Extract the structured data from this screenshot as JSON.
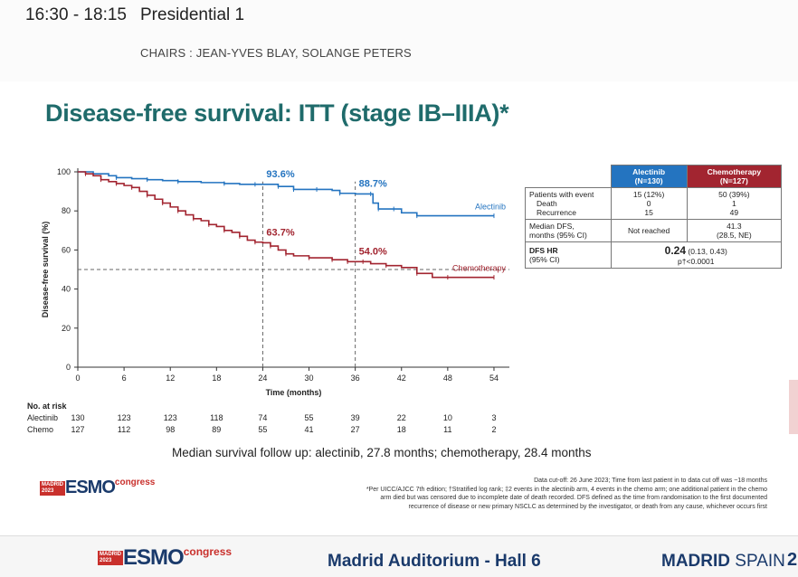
{
  "header": {
    "time": "16:30 - 18:15",
    "session": "Presidential 1",
    "chairs": "CHAIRS : JEAN-YVES BLAY, SOLANGE PETERS"
  },
  "slide": {
    "title": "Disease-free survival: ITT (stage IB–IIIA)*",
    "follow_up": "Median survival follow up: alectinib, 27.8 months; chemotherapy, 28.4 months",
    "footnotes": [
      "Data cut-off: 26 June 2023; Time from last patient in to data cut off was ~18 months",
      "*Per UICC/AJCC 7th edition; †Stratified log rank; ‡2 events in the alectinib arm, 4 events in the chemo arm; one additional patient in the chemo",
      "arm died but was censored due to incomplete date of death recorded. DFS defined as the time from randomisation to the first documented",
      "recurrence of disease or new primary NSCLC as determined by the investigator, or death from any cause, whichever occurs first"
    ]
  },
  "table": {
    "col_alectinib": "Alectinib",
    "col_alectinib_n": "(N=130)",
    "col_chemo": "Chemotherapy",
    "col_chemo_n": "(N=127)",
    "row_events_label": "Patients with event",
    "row_events_alec": "15 (12%)",
    "row_events_chemo": "50 (39%)",
    "row_death_label": "Death",
    "row_death_alec": "0",
    "row_death_chemo": "1",
    "row_recur_label": "Recurrence",
    "row_recur_alec": "15",
    "row_recur_chemo": "49",
    "row_median_label1": "Median DFS,",
    "row_median_label2": "months (95% CI)",
    "row_median_alec": "Not reached",
    "row_median_chemo1": "41.3",
    "row_median_chemo2": "(28.5, NE)",
    "row_hr_label1": "DFS HR",
    "row_hr_label2": "(95% CI)",
    "row_hr_value": "0.24",
    "row_hr_ci": "(0.13, 0.43)",
    "row_hr_p": "p†<0.0001"
  },
  "risk_table": {
    "title": "No. at risk",
    "rows": [
      {
        "label": "Alectinib",
        "values": [
          "130",
          "123",
          "123",
          "118",
          "74",
          "55",
          "39",
          "22",
          "10",
          "3"
        ]
      },
      {
        "label": "Chemo",
        "values": [
          "127",
          "112",
          "98",
          "89",
          "55",
          "41",
          "27",
          "18",
          "11",
          "2"
        ]
      }
    ]
  },
  "footer": {
    "room": "Madrid Auditorium - Hall 6",
    "city_bold": "MADRID",
    "city_country": "SPAIN",
    "corner": "2"
  },
  "logo": {
    "line1": "MADRID",
    "line2": "2023",
    "brand": "ESMO",
    "suffix": "congress"
  },
  "colors": {
    "alectinib": "#2474c0",
    "chemotherapy": "#a22530",
    "title": "#1f6b6b"
  },
  "chart_data": {
    "type": "line",
    "xlabel": "Time (months)",
    "ylabel": "Disease-free survival (%)",
    "xlim": [
      0,
      56
    ],
    "ylim": [
      0,
      100
    ],
    "xticks": [
      0,
      6,
      12,
      18,
      24,
      30,
      36,
      42,
      48,
      54
    ],
    "yticks": [
      0,
      20,
      40,
      60,
      80,
      100
    ],
    "reference_line_y": 50,
    "reference_lines_x": [
      24,
      36
    ],
    "series": [
      {
        "name": "Alectinib",
        "color": "#2474c0",
        "x": [
          0,
          2,
          4,
          5,
          7,
          9,
          11,
          13,
          16,
          19,
          21,
          23,
          24,
          26,
          27,
          28,
          29,
          31,
          33,
          34,
          36,
          38,
          38.3,
          39,
          40,
          41,
          42,
          44,
          46,
          54
        ],
        "y": [
          100,
          99,
          98,
          97,
          96.5,
          96,
          95.5,
          95,
          94.5,
          94,
          93.6,
          93.6,
          93.6,
          92.5,
          92.5,
          91,
          91,
          91,
          90.5,
          89,
          88.7,
          88.7,
          84,
          81,
          81,
          81,
          79,
          77.5,
          77.5,
          77.5
        ]
      },
      {
        "name": "Chemotherapy",
        "color": "#a22530",
        "x": [
          0,
          1,
          2,
          3,
          4,
          5,
          6,
          7,
          8,
          9,
          10,
          11,
          12,
          13,
          14,
          15,
          16,
          17,
          18,
          19,
          20,
          21,
          22,
          23,
          24,
          25,
          26,
          27,
          28,
          30,
          31,
          33,
          34,
          35,
          36,
          37,
          38,
          40,
          42,
          44,
          46,
          48,
          50,
          54
        ],
        "y": [
          100,
          99,
          98,
          96,
          95,
          94,
          93,
          92,
          90,
          88,
          86,
          84,
          82,
          80,
          78,
          76,
          75,
          73,
          72,
          70,
          69,
          67,
          65,
          64,
          63.7,
          62,
          60,
          58,
          57,
          56,
          56,
          55,
          55,
          54,
          54,
          54,
          53,
          52,
          51,
          48,
          46,
          46,
          46,
          46
        ]
      }
    ],
    "annotations": [
      {
        "text": "93.6%",
        "series": "Alectinib"
      },
      {
        "text": "88.7%",
        "series": "Alectinib"
      },
      {
        "text": "63.7%",
        "series": "Chemotherapy"
      },
      {
        "text": "54.0%",
        "series": "Chemotherapy"
      }
    ]
  }
}
